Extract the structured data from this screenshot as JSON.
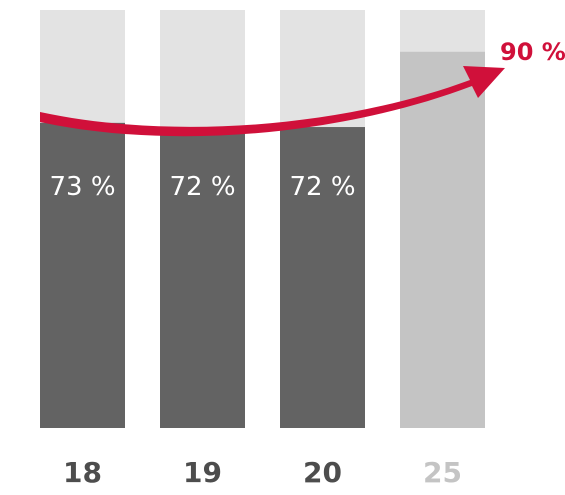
{
  "chart_data": {
    "type": "bar",
    "categories": [
      "18",
      "19",
      "20",
      "25"
    ],
    "values": [
      73,
      72,
      72,
      90
    ],
    "value_labels": [
      "73 %",
      "72 %",
      "72 %",
      ""
    ],
    "target_label": "90 %",
    "title": "",
    "xlabel": "",
    "ylabel": "",
    "ylim": [
      0,
      100
    ],
    "grid": false,
    "legend": "none",
    "colors": {
      "actual_bar": "#636363",
      "target_bar": "#c4c4c4",
      "bar_background": "#e3e3e3",
      "trend_arrow": "#d0103a",
      "label_dark": "#4d4d4d",
      "label_light": "#c4c4c4",
      "value_text": "#ffffff"
    }
  }
}
